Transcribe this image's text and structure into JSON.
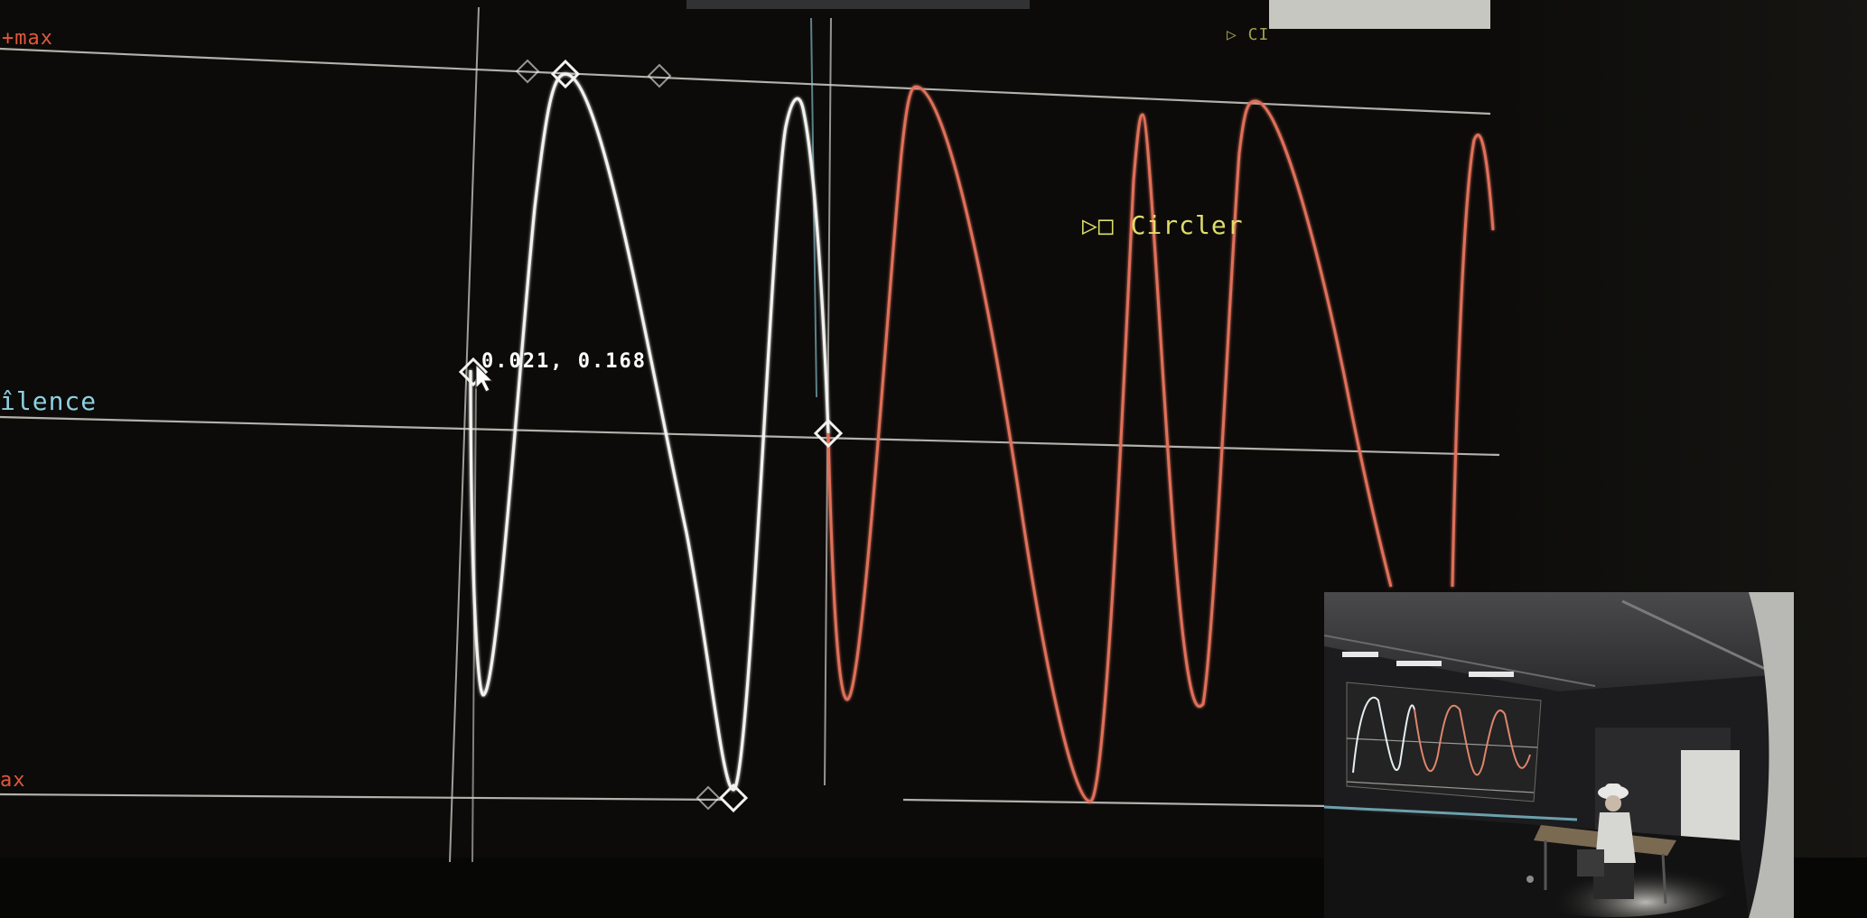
{
  "colors": {
    "background": "#0b0a08",
    "grid_line": "#cfcfc8",
    "selected_wave": "#f2f2ee",
    "circler_wave": "#e0705a",
    "silence_label": "#8fd0e0",
    "max_label": "#e2573c",
    "circler_label": "#dede6a",
    "coords_label": "#ffffff"
  },
  "labels": {
    "plus_max": "+max",
    "silence": "îlence",
    "minus_max": "ax",
    "circler": "▷□ Circler",
    "coords": "0.021, 0.168",
    "top_partial": "▷ CI"
  },
  "icons": {
    "control_point": "diamond-icon",
    "mouse_pointer": "cursor-icon"
  },
  "inset": {
    "content": "camera-view-of-performer"
  }
}
